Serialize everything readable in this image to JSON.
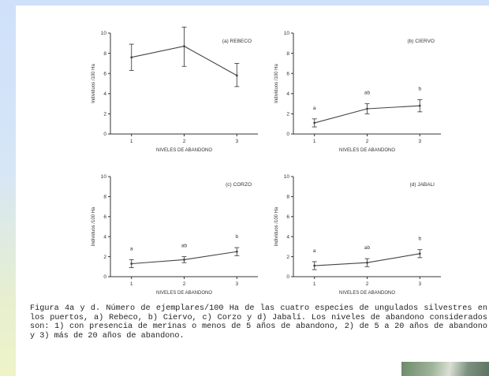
{
  "chart_data": [
    {
      "type": "line",
      "title": "(a) REBECO",
      "xlabel": "NIVELES DE ABANDONO",
      "ylabel": "Individuos /100 Ha",
      "x": [
        1,
        2,
        3
      ],
      "values": [
        7.6,
        8.7,
        5.8
      ],
      "err_low": [
        6.3,
        6.7,
        4.7
      ],
      "err_high": [
        8.9,
        10.6,
        7.0
      ],
      "sig_labels": [],
      "xlim": [
        0.6,
        3.4
      ],
      "ylim": [
        0,
        10
      ],
      "yticks": [
        0,
        2,
        4,
        6,
        8,
        10
      ],
      "xticks": [
        1,
        2,
        3
      ]
    },
    {
      "type": "line",
      "title": "(b) CIERVO",
      "xlabel": "NIVELES DE ABANDONO",
      "ylabel": "Individuos /100 Ha",
      "x": [
        1,
        2,
        3
      ],
      "values": [
        1.1,
        2.5,
        2.8
      ],
      "err_low": [
        0.7,
        2.0,
        2.2
      ],
      "err_high": [
        1.5,
        3.0,
        3.4
      ],
      "sig_labels": [
        "a",
        "ab",
        "b"
      ],
      "xlim": [
        0.6,
        3.4
      ],
      "ylim": [
        0,
        10
      ],
      "yticks": [
        0,
        2,
        4,
        6,
        8,
        10
      ],
      "xticks": [
        1,
        2,
        3
      ]
    },
    {
      "type": "line",
      "title": "(c) CORZO",
      "xlabel": "NIVELES DE ABANDONO",
      "ylabel": "Individuos /100 Ha",
      "x": [
        1,
        2,
        3
      ],
      "values": [
        1.3,
        1.7,
        2.5
      ],
      "err_low": [
        0.9,
        1.4,
        2.1
      ],
      "err_high": [
        1.7,
        2.0,
        2.9
      ],
      "sig_labels": [
        "a",
        "ab",
        "b"
      ],
      "xlim": [
        0.6,
        3.4
      ],
      "ylim": [
        0,
        10
      ],
      "yticks": [
        0,
        2,
        4,
        6,
        8,
        10
      ],
      "xticks": [
        1,
        2,
        3
      ]
    },
    {
      "type": "line",
      "title": "(d) JABALI",
      "xlabel": "NIVELES DE ABANDONO",
      "ylabel": "Individuos /100 Ha",
      "x": [
        1,
        2,
        3
      ],
      "values": [
        1.1,
        1.4,
        2.3
      ],
      "err_low": [
        0.7,
        1.0,
        1.9
      ],
      "err_high": [
        1.5,
        1.8,
        2.7
      ],
      "sig_labels": [
        "a",
        "ab",
        "b"
      ],
      "xlim": [
        0.6,
        3.4
      ],
      "ylim": [
        0,
        10
      ],
      "yticks": [
        0,
        2,
        4,
        6,
        8,
        10
      ],
      "xticks": [
        1,
        2,
        3
      ]
    }
  ],
  "caption": "Figura 4a y d. Número de ejemplares/100 Ha de las cuatro especies de ungulados silvestres en los puertos, a) Rebeco, b) Ciervo, c) Corzo y d) Jabalí. Los niveles de abandono considerados son: 1) con presencia de merinas o menos de 5 años de abandono, 2) de 5 a 20 años de abandono y 3) más de 20 años de abandono."
}
